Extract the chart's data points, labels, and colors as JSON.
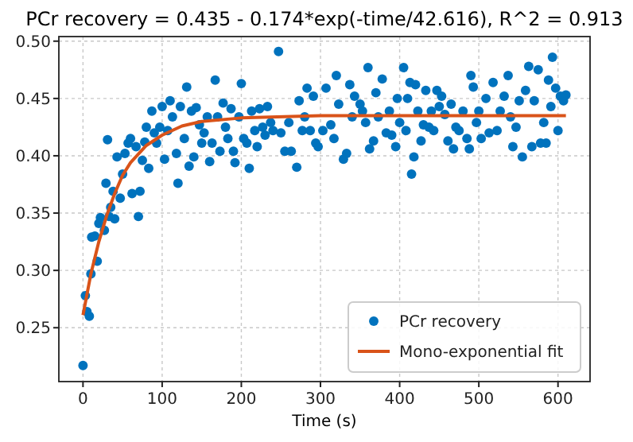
{
  "chart_data": {
    "type": "scatter",
    "title": "PCr recovery = 0.435 - 0.174*exp(-time/42.616), R^2 = 0.913",
    "xlabel": "Time (s)",
    "xlim": [
      -30.5,
      640.5
    ],
    "xticks": [
      0,
      100,
      200,
      300,
      400,
      500,
      600
    ],
    "ylim": [
      0.203,
      0.504
    ],
    "yticks": [
      {
        "value": 0.25,
        "label": "0.25"
      },
      {
        "value": 0.3,
        "label": "0.30"
      },
      {
        "value": 0.35,
        "label": "0.35"
      },
      {
        "value": 0.4,
        "label": "0.40"
      },
      {
        "value": 0.45,
        "label": "0.45"
      },
      {
        "value": 0.5,
        "label": "0.50"
      }
    ],
    "grid": true,
    "legend": "bottom right",
    "series": [
      {
        "name": "PCr recovery",
        "marker": "circle",
        "color": "#0072bd",
        "x": [
          0,
          3,
          5,
          8,
          10,
          11,
          15,
          18,
          20,
          22,
          27,
          29,
          31,
          33,
          35,
          38,
          40,
          43,
          47,
          50,
          53,
          57,
          60,
          62,
          67,
          70,
          72,
          75,
          78,
          80,
          83,
          87,
          90,
          93,
          97,
          100,
          103,
          107,
          110,
          113,
          118,
          120,
          123,
          128,
          131,
          134,
          137,
          140,
          143,
          147,
          150,
          153,
          157,
          160,
          163,
          167,
          170,
          173,
          177,
          180,
          183,
          187,
          190,
          192,
          197,
          200,
          203,
          207,
          210,
          213,
          217,
          220,
          223,
          227,
          230,
          233,
          237,
          240,
          247,
          250,
          255,
          260,
          263,
          270,
          273,
          277,
          280,
          283,
          287,
          291,
          294,
          297,
          303,
          307,
          313,
          317,
          320,
          323,
          329,
          333,
          337,
          340,
          343,
          350,
          353,
          357,
          360,
          362,
          367,
          370,
          373,
          378,
          383,
          387,
          390,
          395,
          397,
          400,
          405,
          408,
          410,
          413,
          415,
          418,
          420,
          423,
          427,
          430,
          433,
          437,
          440,
          443,
          447,
          450,
          453,
          457,
          461,
          465,
          468,
          471,
          475,
          480,
          485,
          488,
          490,
          493,
          497,
          500,
          503,
          509,
          513,
          518,
          523,
          527,
          532,
          537,
          540,
          543,
          547,
          551,
          555,
          559,
          563,
          567,
          570,
          575,
          578,
          582,
          585,
          588,
          591,
          593,
          597,
          600,
          603,
          607,
          610
        ],
        "values": [
          0.217,
          0.278,
          0.264,
          0.26,
          0.297,
          0.329,
          0.33,
          0.308,
          0.341,
          0.346,
          0.335,
          0.376,
          0.414,
          0.347,
          0.355,
          0.369,
          0.345,
          0.399,
          0.363,
          0.384,
          0.402,
          0.411,
          0.415,
          0.367,
          0.408,
          0.347,
          0.369,
          0.396,
          0.412,
          0.425,
          0.389,
          0.439,
          0.42,
          0.411,
          0.425,
          0.443,
          0.397,
          0.422,
          0.448,
          0.434,
          0.402,
          0.376,
          0.443,
          0.415,
          0.46,
          0.391,
          0.439,
          0.399,
          0.442,
          0.427,
          0.411,
          0.42,
          0.434,
          0.395,
          0.411,
          0.466,
          0.434,
          0.404,
          0.446,
          0.425,
          0.415,
          0.441,
          0.404,
          0.394,
          0.434,
          0.463,
          0.415,
          0.411,
          0.389,
          0.439,
          0.422,
          0.408,
          0.441,
          0.425,
          0.418,
          0.443,
          0.429,
          0.422,
          0.491,
          0.42,
          0.404,
          0.429,
          0.404,
          0.39,
          0.448,
          0.422,
          0.434,
          0.459,
          0.422,
          0.452,
          0.411,
          0.408,
          0.422,
          0.459,
          0.427,
          0.415,
          0.47,
          0.445,
          0.397,
          0.402,
          0.462,
          0.434,
          0.452,
          0.445,
          0.439,
          0.429,
          0.477,
          0.406,
          0.413,
          0.455,
          0.434,
          0.467,
          0.42,
          0.439,
          0.418,
          0.408,
          0.45,
          0.429,
          0.477,
          0.422,
          0.45,
          0.464,
          0.384,
          0.399,
          0.462,
          0.439,
          0.413,
          0.427,
          0.457,
          0.425,
          0.439,
          0.422,
          0.457,
          0.443,
          0.452,
          0.436,
          0.413,
          0.445,
          0.406,
          0.425,
          0.422,
          0.439,
          0.415,
          0.406,
          0.47,
          0.46,
          0.429,
          0.439,
          0.415,
          0.45,
          0.42,
          0.464,
          0.422,
          0.439,
          0.452,
          0.47,
          0.434,
          0.408,
          0.425,
          0.448,
          0.399,
          0.457,
          0.478,
          0.408,
          0.448,
          0.475,
          0.411,
          0.429,
          0.411,
          0.466,
          0.443,
          0.486,
          0.459,
          0.422,
          0.452,
          0.448,
          0.453
        ]
      },
      {
        "name": "Mono-exponential fit",
        "type": "line",
        "line_style": "solid",
        "color": "#d95319",
        "x": [
          0,
          10,
          20,
          30,
          40,
          50,
          60,
          80,
          100,
          125,
          150,
          200,
          300,
          450,
          610
        ],
        "values": [
          0.261,
          0.297,
          0.325,
          0.348,
          0.367,
          0.383,
          0.394,
          0.409,
          0.418,
          0.426,
          0.43,
          0.433,
          0.435,
          0.435,
          0.435
        ]
      }
    ]
  }
}
